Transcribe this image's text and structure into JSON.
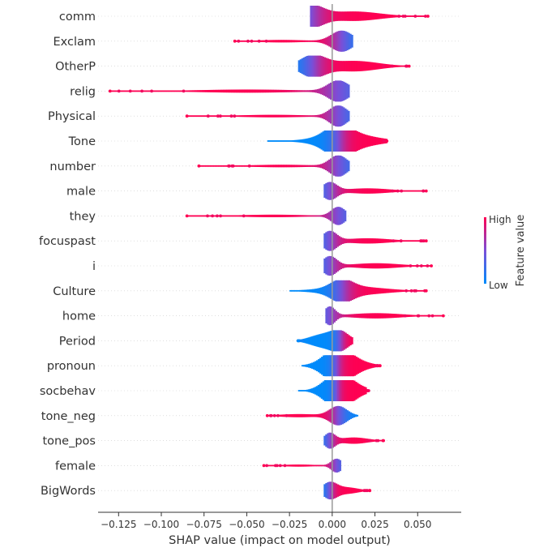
{
  "chart_data": {
    "type": "violin",
    "xlabel": "SHAP value (impact on model output)",
    "xlim": [
      -0.137,
      0.0755
    ],
    "x_ticks": [
      -0.125,
      -0.1,
      -0.075,
      -0.05,
      -0.025,
      0.0,
      0.025,
      0.05
    ],
    "x_tick_labels": [
      "−0.125",
      "−0.100",
      "−0.075",
      "−0.050",
      "−0.025",
      "0.000",
      "0.025",
      "0.050"
    ],
    "colorbar": {
      "title": "Feature value",
      "high_label": "High",
      "low_label": "Low",
      "low_color": "#008bfb",
      "high_color": "#ff0052"
    },
    "features": [
      {
        "name": "comm",
        "min": -0.013,
        "max": 0.056,
        "tail_high": true,
        "mode": -0.013,
        "mode_w": 1.0,
        "mode_s": 0.007,
        "low_side": -1,
        "high_w": 0.45,
        "high_mode": 0.012
      },
      {
        "name": "Exclam",
        "min": -0.057,
        "max": 0.012,
        "tail_high": false,
        "mode": 0.005,
        "mode_w": 1.0,
        "mode_s": 0.006,
        "low_side": 1,
        "high_w": 0.12,
        "high_mode": -0.03
      },
      {
        "name": "OtherP",
        "min": -0.02,
        "max": 0.045,
        "tail_high": true,
        "mode": -0.012,
        "mode_w": 1.0,
        "mode_s": 0.007,
        "low_side": -1,
        "high_w": 0.5,
        "high_mode": 0.012
      },
      {
        "name": "relig",
        "min": -0.13,
        "max": 0.01,
        "tail_high": false,
        "mode": 0.003,
        "mode_w": 1.0,
        "mode_s": 0.006,
        "low_side": 1,
        "high_w": 0.15,
        "high_mode": -0.05
      },
      {
        "name": "Physical",
        "min": -0.085,
        "max": 0.01,
        "tail_high": false,
        "mode": 0.003,
        "mode_w": 1.0,
        "mode_s": 0.005,
        "low_side": 1,
        "high_w": 0.12,
        "high_mode": -0.035
      },
      {
        "name": "Tone",
        "min": -0.038,
        "max": 0.032,
        "tail_high": true,
        "mode": 0.003,
        "mode_w": 1.0,
        "mode_s": 0.007,
        "low_side": -1,
        "high_w": 0.7,
        "high_mode": 0.008
      },
      {
        "name": "number",
        "min": -0.078,
        "max": 0.01,
        "tail_high": false,
        "mode": 0.003,
        "mode_w": 1.0,
        "mode_s": 0.005,
        "low_side": 1,
        "high_w": 0.12,
        "high_mode": -0.03
      },
      {
        "name": "male",
        "min": -0.005,
        "max": 0.055,
        "tail_high": true,
        "mode": -0.002,
        "mode_w": 0.8,
        "mode_s": 0.004,
        "low_side": -1,
        "high_w": 0.25,
        "high_mode": 0.02
      },
      {
        "name": "they",
        "min": -0.085,
        "max": 0.008,
        "tail_high": false,
        "mode": 0.003,
        "mode_w": 0.85,
        "mode_s": 0.004,
        "low_side": 1,
        "high_w": 0.12,
        "high_mode": -0.035
      },
      {
        "name": "focuspast",
        "min": -0.005,
        "max": 0.055,
        "tail_high": true,
        "mode": -0.002,
        "mode_w": 0.9,
        "mode_s": 0.004,
        "low_side": -1,
        "high_w": 0.25,
        "high_mode": 0.02
      },
      {
        "name": "i",
        "min": -0.005,
        "max": 0.058,
        "tail_high": true,
        "mode": -0.002,
        "mode_w": 0.9,
        "mode_s": 0.004,
        "low_side": -1,
        "high_w": 0.25,
        "high_mode": 0.025
      },
      {
        "name": "Culture",
        "min": -0.025,
        "max": 0.055,
        "tail_high": true,
        "mode": 0.005,
        "mode_w": 0.8,
        "mode_s": 0.006,
        "low_side": -1,
        "high_w": 0.4,
        "high_mode": 0.012
      },
      {
        "name": "home",
        "min": -0.004,
        "max": 0.065,
        "tail_high": true,
        "mode": -0.002,
        "mode_w": 0.85,
        "mode_s": 0.003,
        "low_side": -1,
        "high_w": 0.25,
        "high_mode": 0.025
      },
      {
        "name": "Period",
        "min": -0.02,
        "max": 0.012,
        "tail_high": false,
        "mode": 0.004,
        "mode_w": 0.8,
        "mode_s": 0.005,
        "low_side": -1,
        "high_w": 0.6,
        "high_mode": -0.006
      },
      {
        "name": "pronoun",
        "min": -0.018,
        "max": 0.028,
        "tail_high": true,
        "mode": 0.002,
        "mode_w": 1.0,
        "mode_s": 0.007,
        "low_side": -1,
        "high_w": 0.8,
        "high_mode": 0.006
      },
      {
        "name": "socbehav",
        "min": -0.02,
        "max": 0.02,
        "tail_high": true,
        "mode": 0.002,
        "mode_w": 1.0,
        "mode_s": 0.007,
        "low_side": -1,
        "high_w": 0.8,
        "high_mode": 0.006
      },
      {
        "name": "tone_neg",
        "min": -0.038,
        "max": 0.015,
        "tail_high": false,
        "mode": 0.003,
        "mode_w": 0.9,
        "mode_s": 0.005,
        "low_side": 1,
        "high_w": 0.15,
        "high_mode": -0.02
      },
      {
        "name": "tone_pos",
        "min": -0.005,
        "max": 0.03,
        "tail_high": true,
        "mode": -0.002,
        "mode_w": 0.7,
        "mode_s": 0.003,
        "low_side": -1,
        "high_w": 0.3,
        "high_mode": 0.012
      },
      {
        "name": "female",
        "min": -0.04,
        "max": 0.005,
        "tail_high": false,
        "mode": 0.002,
        "mode_w": 0.65,
        "mode_s": 0.003,
        "low_side": 1,
        "high_w": 0.1,
        "high_mode": -0.02
      },
      {
        "name": "BigWords",
        "min": -0.005,
        "max": 0.022,
        "tail_high": true,
        "mode": -0.002,
        "mode_w": 0.75,
        "mode_s": 0.004,
        "low_side": -1,
        "high_w": 0.3,
        "high_mode": 0.008
      }
    ]
  }
}
